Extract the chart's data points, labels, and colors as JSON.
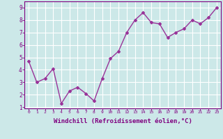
{
  "x": [
    0,
    1,
    2,
    3,
    4,
    5,
    6,
    7,
    8,
    9,
    10,
    11,
    12,
    13,
    14,
    15,
    16,
    17,
    18,
    19,
    20,
    21,
    22,
    23
  ],
  "y": [
    4.7,
    3.0,
    3.3,
    4.1,
    1.3,
    2.3,
    2.6,
    2.1,
    1.5,
    3.3,
    4.9,
    5.5,
    7.0,
    8.0,
    8.6,
    7.8,
    7.7,
    6.6,
    7.0,
    7.3,
    8.0,
    7.7,
    8.2,
    9.0
  ],
  "line_color": "#993399",
  "marker": "D",
  "marker_size": 2,
  "linewidth": 1.0,
  "xlabel": "Windchill (Refroidissement éolien,°C)",
  "xlabel_fontsize": 6.5,
  "ylim": [
    0.9,
    9.5
  ],
  "yticks": [
    1,
    2,
    3,
    4,
    5,
    6,
    7,
    8,
    9
  ],
  "xticks": [
    0,
    1,
    2,
    3,
    4,
    5,
    6,
    7,
    8,
    9,
    10,
    11,
    12,
    13,
    14,
    15,
    16,
    17,
    18,
    19,
    20,
    21,
    22,
    23
  ],
  "bg_color": "#cce8e8",
  "grid_color": "#ffffff",
  "tick_color": "#800080",
  "spine_color": "#800080",
  "label_color": "#800080"
}
